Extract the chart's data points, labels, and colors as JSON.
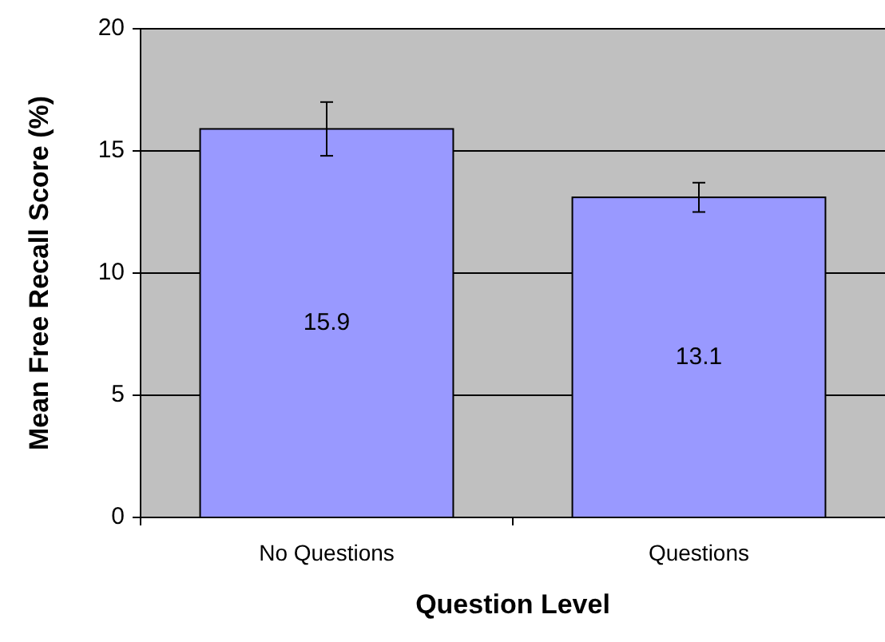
{
  "chart_data": {
    "type": "bar",
    "xlabel": "Question Level",
    "ylabel": "Mean Free Recall Score (%)",
    "categories": [
      "No Questions",
      "Questions"
    ],
    "values": [
      15.9,
      13.1
    ],
    "errors": [
      1.1,
      0.6
    ],
    "color": "#9999ff",
    "value_labels": [
      "15.9",
      "13.1"
    ],
    "ylim": [
      0,
      20
    ],
    "yticks": [
      0,
      5,
      10,
      15,
      20
    ],
    "grid": "y"
  }
}
